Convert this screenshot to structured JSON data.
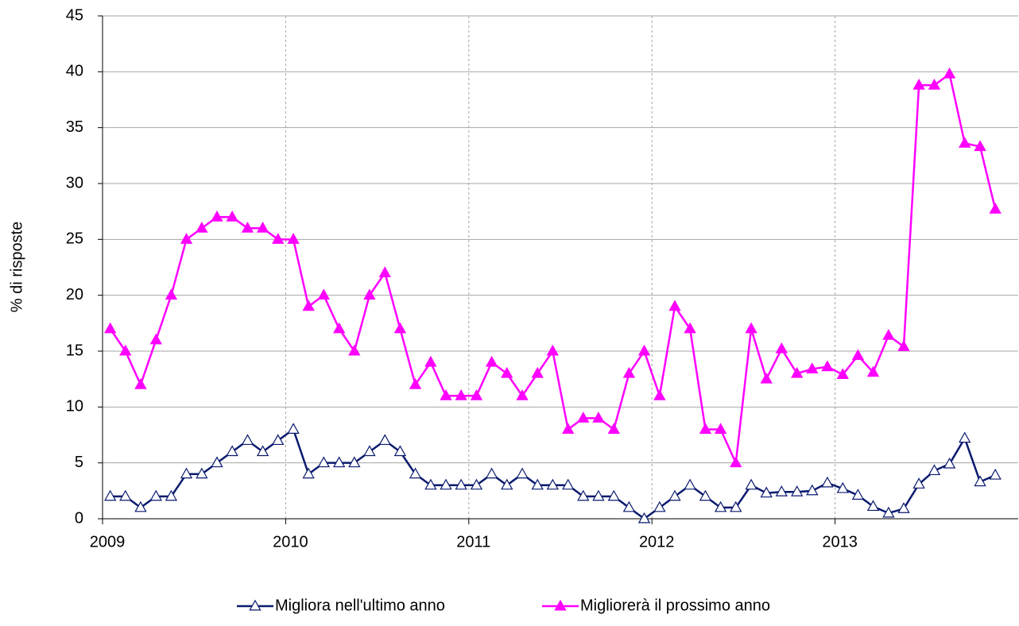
{
  "chart_data": {
    "type": "line",
    "y_label": "% di risposte",
    "x": [
      2009.042,
      2009.125,
      2009.208,
      2009.292,
      2009.375,
      2009.458,
      2009.542,
      2009.625,
      2009.708,
      2009.792,
      2009.875,
      2009.958,
      2010.042,
      2010.125,
      2010.208,
      2010.292,
      2010.375,
      2010.458,
      2010.542,
      2010.625,
      2010.708,
      2010.792,
      2010.875,
      2010.958,
      2011.042,
      2011.125,
      2011.208,
      2011.292,
      2011.375,
      2011.458,
      2011.542,
      2011.625,
      2011.708,
      2011.792,
      2011.875,
      2011.958,
      2012.042,
      2012.125,
      2012.208,
      2012.292,
      2012.375,
      2012.458,
      2012.542,
      2012.625,
      2012.708,
      2012.792,
      2012.875,
      2012.958,
      2013.042,
      2013.125,
      2013.208,
      2013.292,
      2013.375,
      2013.458,
      2013.542,
      2013.625,
      2013.708,
      2013.792,
      2013.875
    ],
    "series": [
      {
        "name": "Migliora nell'ultimo anno",
        "color": "#0a1a6e",
        "marker": "open-triangle",
        "values": [
          2,
          2,
          1,
          2,
          2,
          4,
          4,
          5,
          6,
          7,
          6,
          7,
          8,
          4,
          5,
          5,
          5,
          6,
          7,
          6,
          4,
          3,
          3,
          3,
          3,
          4,
          3,
          4,
          3,
          3,
          3,
          2,
          2,
          2,
          1,
          0,
          1,
          2,
          3,
          2,
          1,
          1,
          3,
          2.3,
          2.4,
          2.4,
          2.5,
          3.2,
          2.7,
          2.1,
          1.1,
          0.5,
          0.9,
          3.1,
          4.3,
          4.9,
          7.2,
          3.3,
          3.9
        ]
      },
      {
        "name": "Migliorerà il prossimo anno",
        "color": "#ff00ff",
        "marker": "filled-triangle",
        "values": [
          17,
          15,
          12,
          16,
          20,
          25,
          26,
          27,
          27,
          26,
          26,
          25,
          25,
          19,
          20,
          17,
          15,
          20,
          22,
          17,
          12,
          14,
          11,
          11,
          11,
          14,
          13,
          11,
          13,
          15,
          8,
          9,
          9,
          8,
          13,
          15,
          11,
          19,
          17,
          8,
          8,
          5,
          17,
          12.5,
          15.2,
          13,
          13.4,
          13.6,
          12.9,
          14.6,
          13.1,
          16.4,
          15.4,
          38.8,
          38.8,
          39.8,
          33.6,
          33.3,
          27.7
        ]
      }
    ],
    "xlim": [
      2009,
      2014
    ],
    "xticks": [
      2009,
      2010,
      2011,
      2012,
      2013
    ],
    "ylim": [
      0,
      45
    ],
    "yticks": [
      0,
      5,
      10,
      15,
      20,
      25,
      30,
      35,
      40,
      45
    ],
    "grid": true,
    "legend": "bottom"
  }
}
